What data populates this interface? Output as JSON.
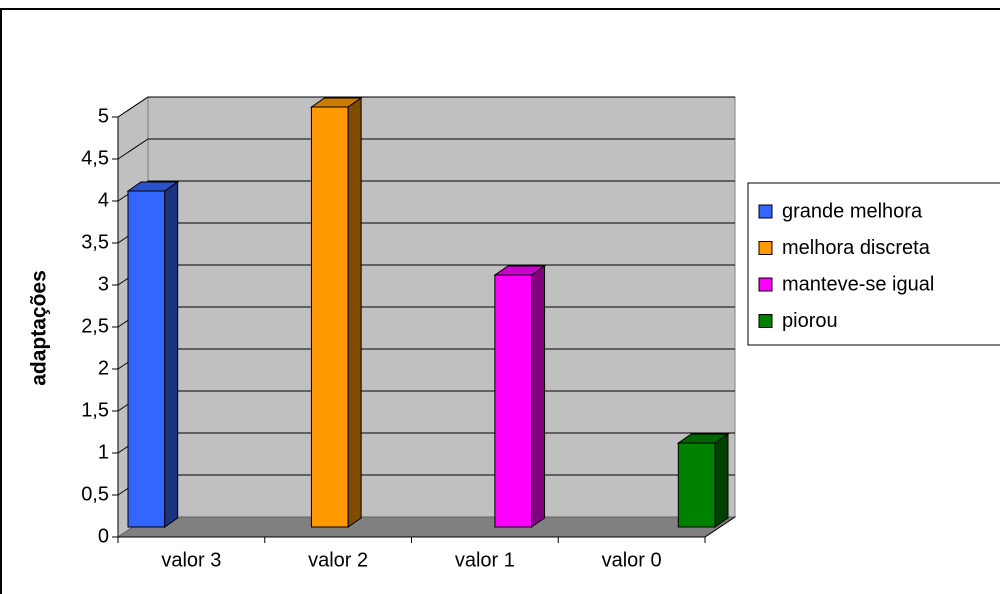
{
  "chart_data": {
    "type": "bar3d",
    "y_label": "adaptações",
    "categories": [
      "valor 3",
      "valor 2",
      "valor 1",
      "valor 0"
    ],
    "series": [
      {
        "name": "grande melhora",
        "color": "#3366ff",
        "values": [
          4,
          null,
          null,
          null
        ]
      },
      {
        "name": "melhora discreta",
        "color": "#ff9900",
        "values": [
          null,
          5,
          null,
          null
        ]
      },
      {
        "name": "manteve-se igual",
        "color": "#ff00ff",
        "values": [
          null,
          null,
          3,
          null
        ]
      },
      {
        "name": "piorou",
        "color": "#008000",
        "values": [
          null,
          null,
          null,
          1
        ]
      }
    ],
    "ylim": [
      0,
      5
    ],
    "yticks": [
      0,
      {
        "value": 0.5,
        "label": "0,5"
      },
      1,
      {
        "value": 1.5,
        "label": "1,5"
      },
      2,
      {
        "value": 2.5,
        "label": "2,5"
      },
      3,
      {
        "value": 3.5,
        "label": "3,5"
      },
      4,
      {
        "value": 4.5,
        "label": "4,5"
      },
      5
    ],
    "grid": true,
    "legend": "right"
  }
}
